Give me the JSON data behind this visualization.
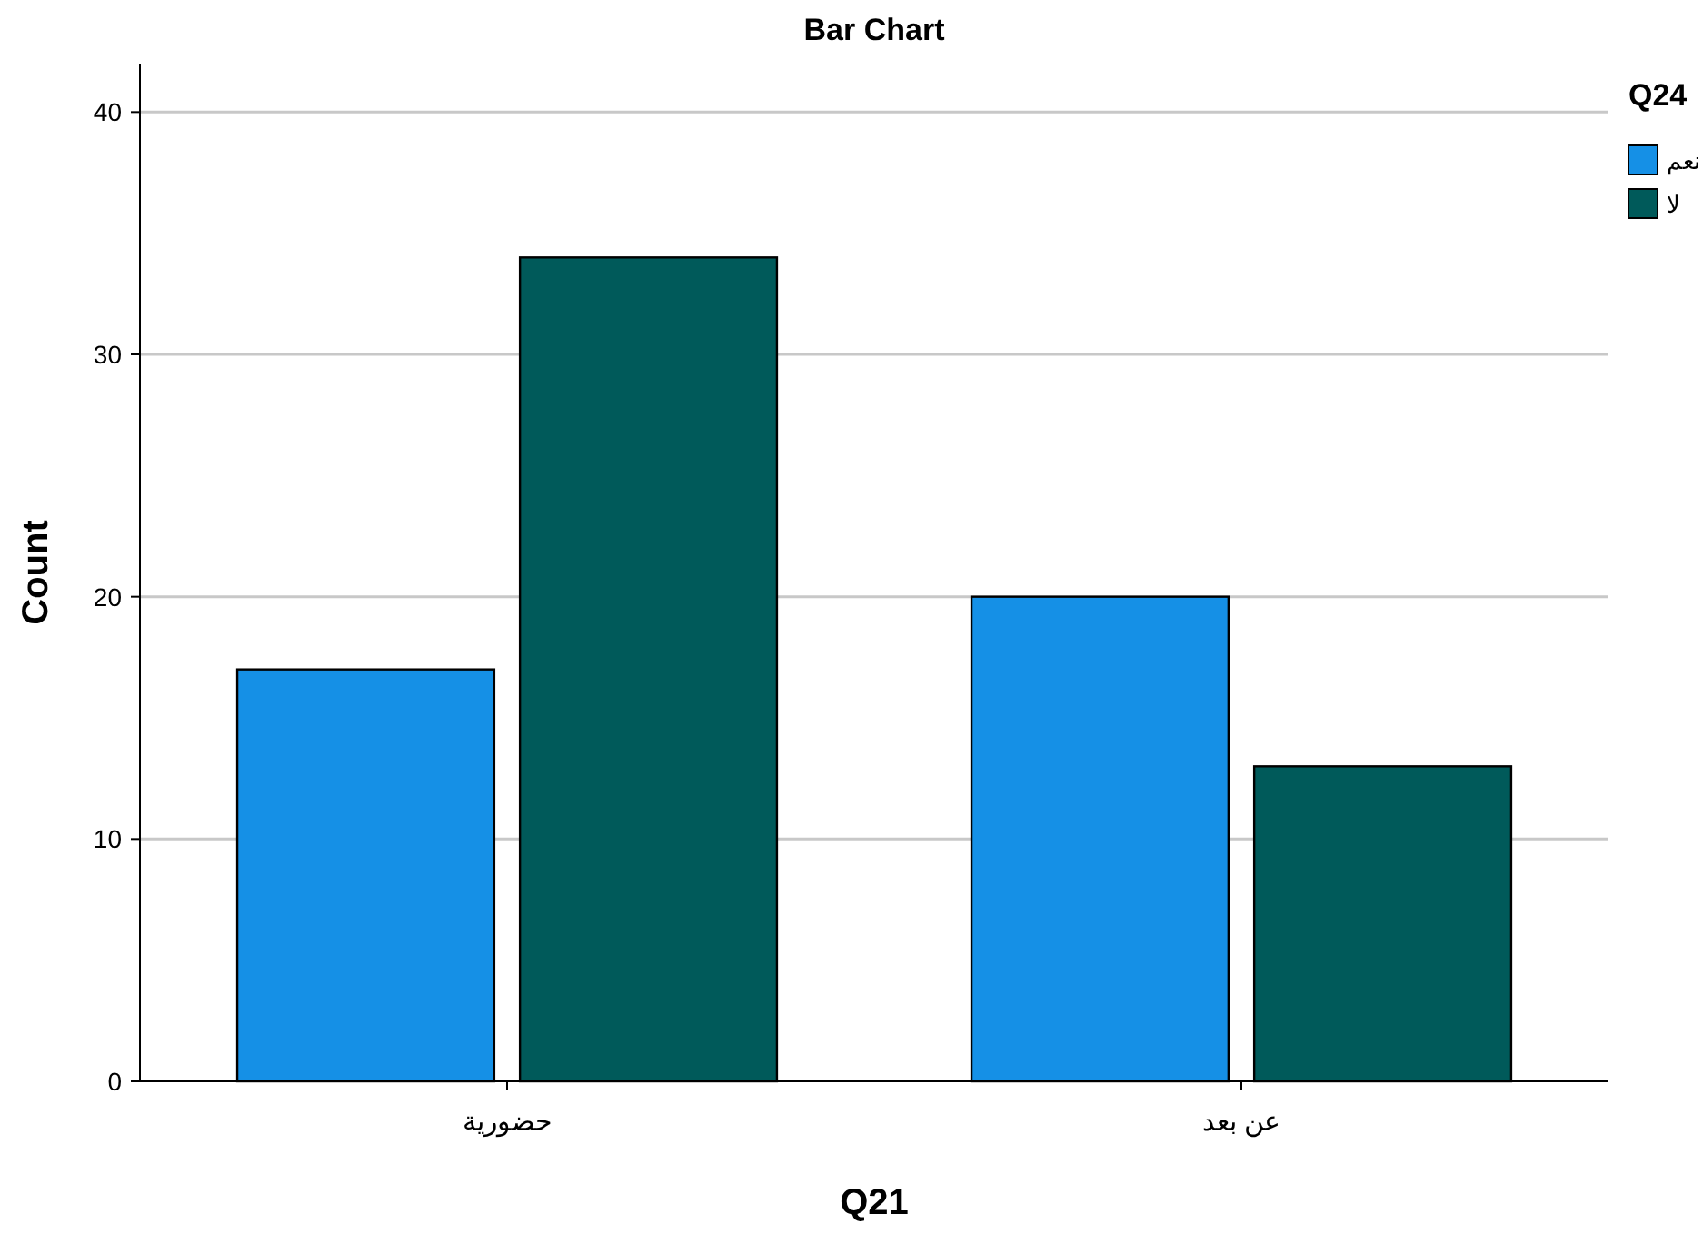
{
  "chart_data": {
    "type": "bar",
    "title": "Bar Chart",
    "xlabel": "Q21",
    "ylabel": "Count",
    "legend_title": "Q24",
    "categories": [
      "حضورية",
      "عن بعد"
    ],
    "series": [
      {
        "name": "نعم",
        "color": "#1590e6",
        "values": [
          17,
          20
        ]
      },
      {
        "name": "لا",
        "color": "#005a5a",
        "values": [
          34,
          13
        ]
      }
    ],
    "ylim": [
      0,
      42
    ],
    "yticks": [
      0,
      10,
      20,
      30,
      40
    ],
    "grid": "y",
    "legend": "right"
  }
}
